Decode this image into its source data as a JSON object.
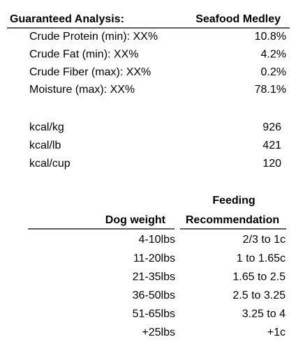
{
  "analysis": {
    "header": [
      "Guaranteed Analysis:",
      "Seafood Medley"
    ],
    "rows": [
      [
        "Crude Protein (min): XX%",
        "10.8%"
      ],
      [
        "Crude Fat (min): XX%",
        "4.2%"
      ],
      [
        "Crude Fiber (max): XX%",
        "0.2%"
      ],
      [
        "Moisture (max): XX%",
        "78.1%"
      ]
    ]
  },
  "energy": {
    "rows": [
      [
        "kcal/kg",
        926
      ],
      [
        "kcal/lb",
        421
      ],
      [
        "kcal/cup",
        120
      ]
    ]
  },
  "feeding": {
    "header": {
      "top": "Feeding",
      "left": "Dog weight",
      "right": "Recommendation"
    },
    "rows": [
      [
        "4-10lbs",
        "2/3 to 1c"
      ],
      [
        "11-20lbs",
        "1 to 1.65c"
      ],
      [
        "21-35lbs",
        "1.65 to 2.5"
      ],
      [
        "36-50lbs",
        "2.5 to 3.25"
      ],
      [
        "51-65lbs",
        "3.25 to 4"
      ],
      [
        "+25lbs",
        "+1c"
      ]
    ]
  }
}
